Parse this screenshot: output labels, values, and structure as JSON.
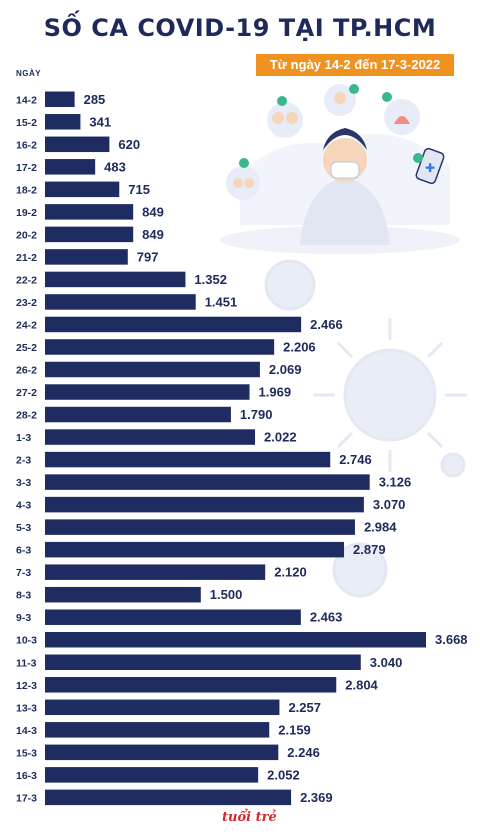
{
  "title": "SỐ CA COVID-19 TẠI TP.HCM",
  "subtitle": "Từ ngày 14-2 đến 17-3-2022",
  "logo_text": "tuổi trẻ",
  "colors": {
    "bar": "#1f2c62",
    "accent": "#f0921f",
    "text": "#1e2a5a"
  },
  "chart_data": {
    "type": "bar",
    "orientation": "horizontal",
    "title": "SỐ CA COVID-19 TẠI TP.HCM",
    "subtitle": "Từ ngày 14-2 đến 17-3-2022",
    "ylabel": "NGÀY",
    "xlim": [
      0,
      3668
    ],
    "categories": [
      "14-2",
      "15-2",
      "16-2",
      "17-2",
      "18-2",
      "19-2",
      "20-2",
      "21-2",
      "22-2",
      "23-2",
      "24-2",
      "25-2",
      "26-2",
      "27-2",
      "28-2",
      "1-3",
      "2-3",
      "3-3",
      "4-3",
      "5-3",
      "6-3",
      "7-3",
      "8-3",
      "9-3",
      "10-3",
      "11-3",
      "12-3",
      "13-3",
      "14-3",
      "15-3",
      "16-3",
      "17-3"
    ],
    "values": [
      285,
      341,
      620,
      483,
      715,
      849,
      849,
      797,
      1352,
      1451,
      2466,
      2206,
      2069,
      1969,
      1790,
      2022,
      2746,
      3126,
      3070,
      2984,
      2879,
      2120,
      1500,
      2463,
      3668,
      3040,
      2804,
      2257,
      2159,
      2246,
      2052,
      2369
    ],
    "value_labels": [
      "285",
      "341",
      "620",
      "483",
      "715",
      "849",
      "849",
      "797",
      "1.352",
      "1.451",
      "2.466",
      "2.206",
      "2.069",
      "1.969",
      "1.790",
      "2.022",
      "2.746",
      "3.126",
      "3.070",
      "2.984",
      "2.879",
      "2.120",
      "1.500",
      "2.463",
      "3.668",
      "3.040",
      "2.804",
      "2.257",
      "2.159",
      "2.246",
      "2.052",
      "2.369"
    ]
  }
}
